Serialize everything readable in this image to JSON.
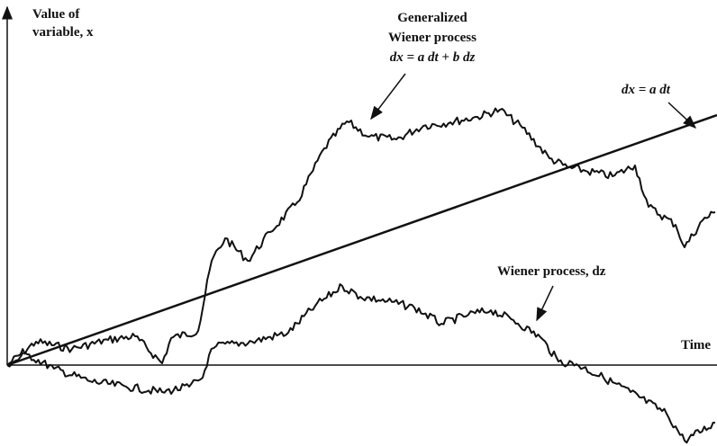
{
  "axes": {
    "y_label": [
      "Value of",
      "variable, x"
    ],
    "x_label": "Time"
  },
  "labels": {
    "generalized": [
      "Generalized",
      "Wiener process",
      "dx = a dt + b dz"
    ],
    "drift": "dx = a dt",
    "wiener": "Wiener process, dz"
  }
}
